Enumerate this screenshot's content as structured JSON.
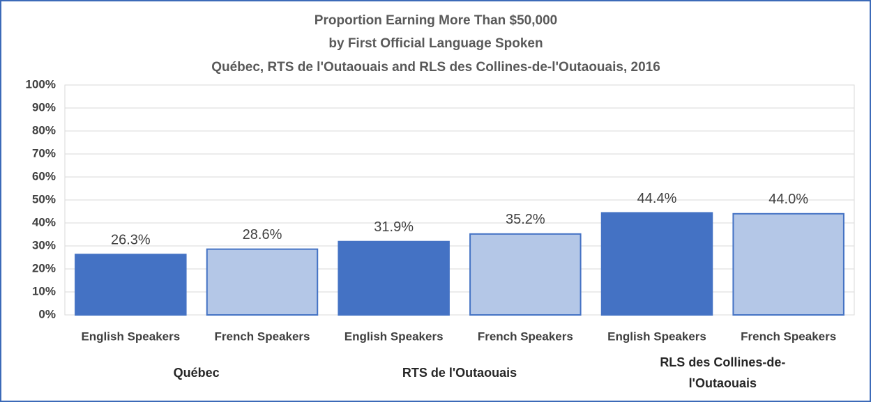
{
  "chart_data": {
    "type": "bar",
    "title": [
      "Proportion Earning More Than $50,000",
      "by First Official Language Spoken",
      "Québec, RTS de l'Outaouais and RLS des Collines-de-l'Outaouais,  2016"
    ],
    "categories": [
      "English Speakers",
      "French Speakers",
      "English Speakers",
      "French Speakers",
      "English Speakers",
      "French Speakers"
    ],
    "groups": [
      "Québec",
      "RTS de l'Outaouais",
      "RLS des Collines-de-l'Outaouais"
    ],
    "values": [
      26.3,
      28.6,
      31.9,
      35.2,
      44.4,
      44.0
    ],
    "value_labels": [
      "26.3%",
      "28.6%",
      "31.9%",
      "35.2%",
      "44.4%",
      "44.0%"
    ],
    "colors": [
      "#4472c4",
      "#b4c7e7",
      "#4472c4",
      "#b4c7e7",
      "#4472c4",
      "#b4c7e7"
    ],
    "ylim": [
      0,
      100
    ],
    "yticks": [
      {
        "value": 0,
        "label": "0%"
      },
      {
        "value": 10,
        "label": "10%"
      },
      {
        "value": 20,
        "label": "20%"
      },
      {
        "value": 30,
        "label": "30%"
      },
      {
        "value": 40,
        "label": "40%"
      },
      {
        "value": 50,
        "label": "50%"
      },
      {
        "value": 60,
        "label": "60%"
      },
      {
        "value": 70,
        "label": "70%"
      },
      {
        "value": 80,
        "label": "80%"
      },
      {
        "value": 90,
        "label": "90%"
      },
      {
        "value": 100,
        "label": "100%"
      }
    ],
    "grid": true
  }
}
